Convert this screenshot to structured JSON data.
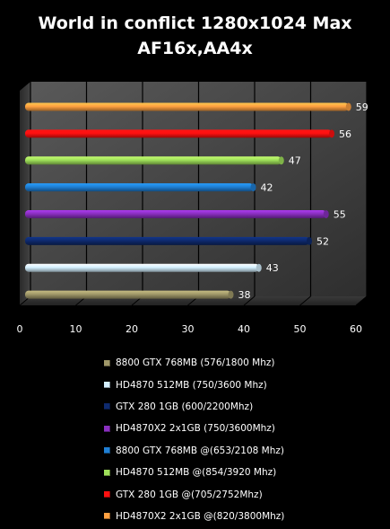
{
  "chart_data": {
    "type": "bar",
    "orientation": "horizontal",
    "title_lines": [
      "World in conflict 1280x1024 Max",
      "AF16x,AA4x"
    ],
    "xlim": [
      0,
      60
    ],
    "x_ticks": [
      0,
      10,
      20,
      30,
      40,
      50,
      60
    ],
    "grid": true,
    "legend_position": "bottom",
    "series": [
      {
        "name": "8800 GTX 768MB (576/1800 Mhz)",
        "value": 38,
        "color": "#a09869"
      },
      {
        "name": "HD4870 512MB (750/3600 Mhz)",
        "value": 43,
        "color": "#d4f0ff"
      },
      {
        "name": "GTX 280 1GB (600/2200Mhz)",
        "value": 52,
        "color": "#0e2a6e"
      },
      {
        "name": "HD4870X2 2x1GB (750/3600Mhz)",
        "value": 55,
        "color": "#8a2fc0"
      },
      {
        "name": "8800 GTX 768MB @(653/2108 Mhz)",
        "value": 42,
        "color": "#1f7fd4"
      },
      {
        "name": "HD4870 512MB @(854/3920 Mhz)",
        "value": 47,
        "color": "#9fe05a"
      },
      {
        "name": "GTX 280 1GB @(705/2752Mhz)",
        "value": 56,
        "color": "#ff1010"
      },
      {
        "name": "HD4870X2 2x1GB @(820/3800Mhz)",
        "value": 59,
        "color": "#ffa040"
      }
    ]
  }
}
